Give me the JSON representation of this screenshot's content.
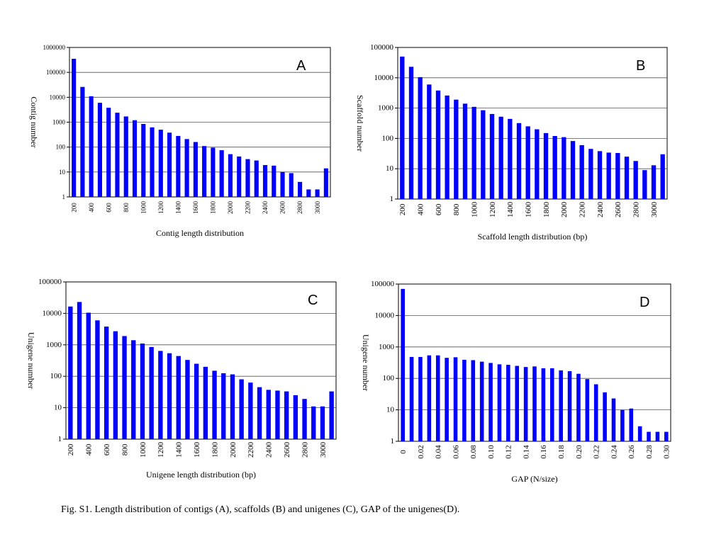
{
  "caption": "Fig. S1. Length distribution of contigs (A), scaffolds (B) and unigenes (C), GAP of the unigenes(D).",
  "colors": {
    "bar": "#0000ff",
    "grid": "#555555",
    "axis": "#000000"
  },
  "chart_data": [
    {
      "id": "A",
      "type": "bar",
      "letter": "A",
      "title": "",
      "xlabel": "Contig length distribution",
      "ylabel": "Contig number",
      "yscale": "log",
      "ylim": [
        1,
        1000000
      ],
      "yticks": [
        "1",
        "10",
        "100",
        "1000",
        "10000",
        "100000",
        "1000000"
      ],
      "grid": "horizontal",
      "categories": [
        "200",
        "300",
        "400",
        "500",
        "600",
        "700",
        "800",
        "900",
        "1000",
        "1100",
        "1200",
        "1300",
        "1400",
        "1500",
        "1600",
        "1700",
        "1800",
        "1900",
        "2000",
        "2100",
        "2200",
        "2300",
        "2400",
        "2500",
        "2600",
        "2700",
        "2800",
        "2900",
        "3000",
        ">3000"
      ],
      "xticklabels": [
        "200",
        "",
        "400",
        "",
        "600",
        "",
        "800",
        "",
        "1000",
        "",
        "1200",
        "",
        "1400",
        "",
        "1600",
        "",
        "1800",
        "",
        "2000",
        "",
        "2200",
        "",
        "2400",
        "",
        "2600",
        "",
        "2800",
        "",
        "3000",
        ""
      ],
      "values": [
        350000,
        26000,
        11000,
        6000,
        3800,
        2400,
        1700,
        1200,
        850,
        620,
        500,
        380,
        280,
        210,
        160,
        110,
        95,
        75,
        52,
        42,
        33,
        29,
        19,
        18,
        10,
        9,
        4,
        2,
        2,
        14
      ]
    },
    {
      "id": "B",
      "type": "bar",
      "letter": "B",
      "title": "",
      "xlabel": "Scaffold length distribution (bp)",
      "ylabel": "Scaffold number",
      "yscale": "log",
      "ylim": [
        1,
        100000
      ],
      "yticks": [
        "1",
        "10",
        "100",
        "1000",
        "10000",
        "100000"
      ],
      "grid": "horizontal",
      "categories": [
        "200",
        "300",
        "400",
        "500",
        "600",
        "700",
        "800",
        "900",
        "1000",
        "1100",
        "1200",
        "1300",
        "1400",
        "1500",
        "1600",
        "1700",
        "1800",
        "1900",
        "2000",
        "2100",
        "2200",
        "2300",
        "2400",
        "2500",
        "2600",
        "2700",
        "2800",
        "2900",
        "3000",
        ">3000"
      ],
      "xticklabels": [
        "200",
        "",
        "400",
        "",
        "600",
        "",
        "800",
        "",
        "1000",
        "",
        "1200",
        "",
        "1400",
        "",
        "1600",
        "",
        "1800",
        "",
        "2000",
        "",
        "2200",
        "",
        "2400",
        "",
        "2600",
        "",
        "2800",
        "",
        "3000",
        ""
      ],
      "values": [
        50000,
        23000,
        10500,
        6000,
        3800,
        2600,
        1900,
        1400,
        1100,
        850,
        640,
        520,
        440,
        320,
        250,
        200,
        150,
        120,
        110,
        82,
        60,
        45,
        38,
        34,
        33,
        25,
        18,
        9,
        13,
        30
      ]
    },
    {
      "id": "C",
      "type": "bar",
      "letter": "C",
      "title": "",
      "xlabel": "Unigene length distribution (bp)",
      "ylabel": "Unigene number",
      "yscale": "log",
      "ylim": [
        1,
        100000
      ],
      "yticks": [
        "1",
        "10",
        "100",
        "1000",
        "10000",
        "100000"
      ],
      "grid": "horizontal",
      "categories": [
        "200",
        "300",
        "400",
        "500",
        "600",
        "700",
        "800",
        "900",
        "1000",
        "1100",
        "1200",
        "1300",
        "1400",
        "1500",
        "1600",
        "1700",
        "1800",
        "1900",
        "2000",
        "2100",
        "2200",
        "2300",
        "2400",
        "2500",
        "2600",
        "2700",
        "2800",
        "2900",
        "3000",
        ">3000"
      ],
      "xticklabels": [
        "200",
        "",
        "400",
        "",
        "600",
        "",
        "800",
        "",
        "1000",
        "",
        "1200",
        "",
        "1400",
        "",
        "1600",
        "",
        "1800",
        "",
        "2000",
        "",
        "2200",
        "",
        "2400",
        "",
        "2600",
        "",
        "2800",
        "",
        "3000",
        ""
      ],
      "values": [
        16500,
        23000,
        10500,
        6000,
        3800,
        2700,
        1900,
        1400,
        1100,
        850,
        640,
        540,
        440,
        330,
        250,
        200,
        150,
        125,
        115,
        80,
        63,
        45,
        37,
        35,
        33,
        25,
        19,
        11,
        11,
        33
      ]
    },
    {
      "id": "D",
      "type": "bar",
      "letter": "D",
      "title": "",
      "xlabel": "GAP (N/size)",
      "ylabel": "Unigene number",
      "yscale": "log",
      "ylim": [
        1,
        100000
      ],
      "yticks": [
        "1",
        "10",
        "100",
        "1000",
        "10000",
        "100000"
      ],
      "grid": "horizontal",
      "categories": [
        "0",
        "0.01",
        "0.02",
        "0.03",
        "0.04",
        "0.05",
        "0.06",
        "0.07",
        "0.08",
        "0.09",
        "0.10",
        "0.11",
        "0.12",
        "0.13",
        "0.14",
        "0.15",
        "0.16",
        "0.17",
        "0.18",
        "0.19",
        "0.20",
        "0.21",
        "0.22",
        "0.23",
        "0.24",
        "0.25",
        "0.26",
        "0.27",
        "0.28",
        "0.29",
        "0.30"
      ],
      "xticklabels": [
        "0",
        "",
        "0.02",
        "",
        "0.04",
        "",
        "0.06",
        "",
        "0.08",
        "",
        "0.10",
        "",
        "0.12",
        "",
        "0.14",
        "",
        "0.16",
        "",
        "0.18",
        "",
        "0.20",
        "",
        "0.22",
        "",
        "0.24",
        "",
        "0.26",
        "",
        "0.28",
        "",
        "0.30"
      ],
      "values": [
        70000,
        480,
        480,
        540,
        540,
        450,
        470,
        390,
        380,
        340,
        310,
        280,
        270,
        250,
        230,
        240,
        210,
        210,
        180,
        170,
        140,
        95,
        65,
        36,
        23,
        10,
        11,
        3,
        2,
        2,
        2
      ]
    }
  ]
}
